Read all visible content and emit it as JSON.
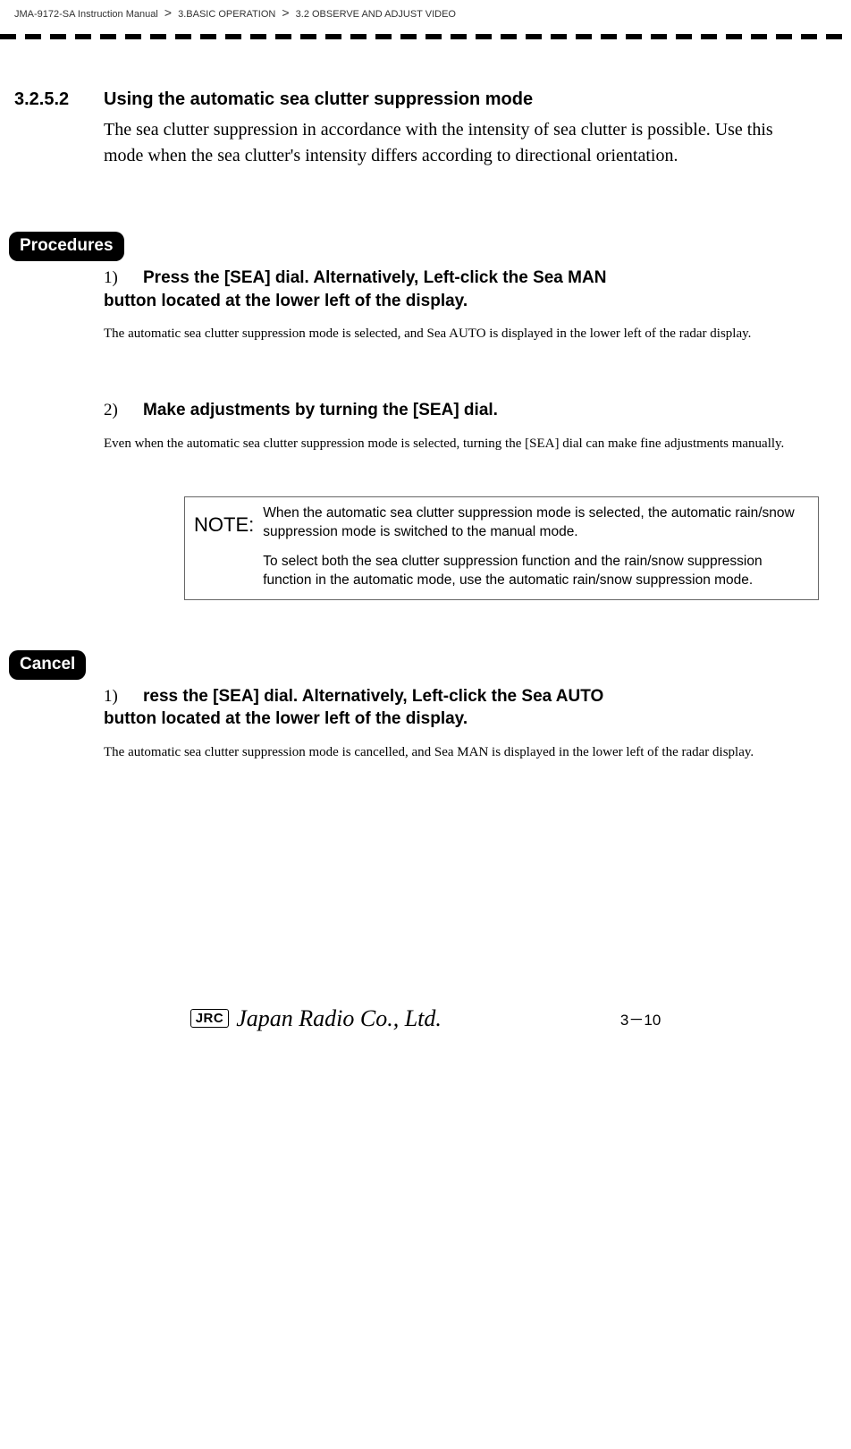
{
  "breadcrumb": {
    "manual": "JMA-9172-SA Instruction Manual",
    "ch": "3.BASIC OPERATION",
    "sec": "3.2  OBSERVE AND ADJUST VIDEO"
  },
  "section": {
    "number": "3.2.5.2",
    "title": "Using the automatic sea clutter suppression mode",
    "intro": "The sea clutter suppression in accordance with the intensity of sea clutter is possible. Use this mode when the sea clutter's intensity differs according to directional orientation."
  },
  "badges": {
    "procedures": "Procedures",
    "cancel": "Cancel"
  },
  "proc": {
    "step1": {
      "num": "1)",
      "title_line1": " Press the [SEA] dial. Alternatively, Left-click the Sea  MAN",
      "title_line2": "button located at the lower left of the display.",
      "desc": "The automatic sea clutter suppression mode is selected, and Sea  AUTO  is displayed in the lower left of the radar display."
    },
    "step2": {
      "num": "2)",
      "title": " Make adjustments by turning the [SEA] dial.",
      "desc": "Even when the automatic sea clutter suppression mode is selected, turning the [SEA] dial can make fine adjustments manually."
    }
  },
  "note": {
    "label": "NOTE:",
    "p1": "When the automatic sea clutter suppression mode is selected, the automatic rain/snow suppression mode is switched to the manual mode.",
    "p2": "To select both the sea clutter suppression function and the rain/snow suppression function in the automatic mode, use the automatic rain/snow suppression mode."
  },
  "cancel": {
    "step1": {
      "num": "1)",
      "title_line1": " ress the [SEA] dial. Alternatively, Left-click the Sea  AUTO",
      "title_line2": "button located at the lower left of the display.",
      "desc": "The automatic sea clutter suppression mode is cancelled, and Sea  MAN  is displayed in the lower left of the radar display."
    }
  },
  "footer": {
    "jrc": "JRC",
    "company": "Japan Radio Co., Ltd.",
    "page": "3－10"
  }
}
